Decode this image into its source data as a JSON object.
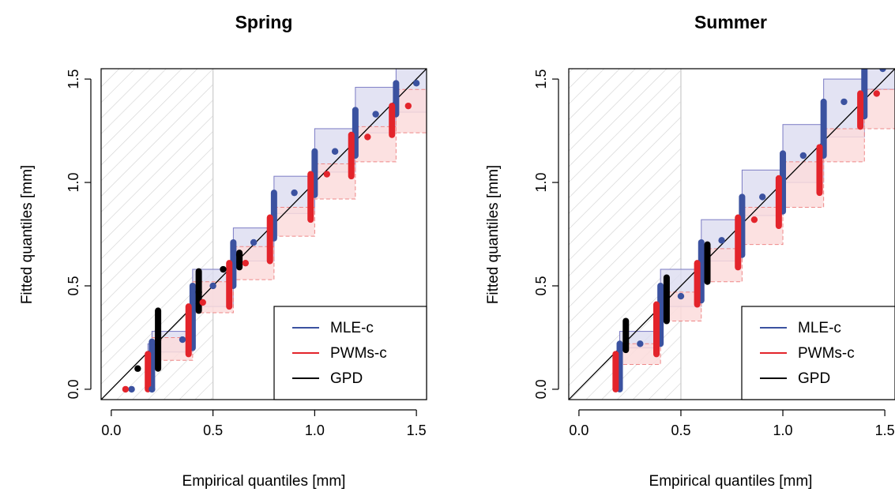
{
  "colors": {
    "mle": "#3b52a0",
    "mle_band_fill": "#dcdcf0",
    "mle_band_edge": "#7b7bc4",
    "pwm": "#e3242b",
    "pwm_band_fill": "#fcdcdc",
    "pwm_band_edge": "#ee8888",
    "gpd": "#000000",
    "hatch": "#d0d0d0",
    "threshold_line": "#d3d3d3"
  },
  "chart_data": [
    {
      "type": "scatter",
      "title": "Spring",
      "xlabel": "Empirical quantiles [mm]",
      "ylabel": "Fitted quantiles [mm]",
      "xlim": [
        -0.05,
        1.55
      ],
      "ylim": [
        -0.05,
        1.55
      ],
      "xticks": [
        0.0,
        0.5,
        1.0,
        1.5
      ],
      "yticks": [
        0.0,
        0.5,
        1.0,
        1.5
      ],
      "xtick_labels": [
        "0.0",
        "0.5",
        "1.0",
        "1.5"
      ],
      "ytick_labels": [
        "0.0",
        "0.5",
        "1.0",
        "1.5"
      ],
      "hatched_region_x": [
        -0.05,
        0.5
      ],
      "threshold": 0.5,
      "identity_line": true,
      "legend": {
        "placement": "bottom-right",
        "entries": [
          "MLE-c",
          "PWMs-c",
          "GPD"
        ]
      },
      "series": [
        {
          "name": "MLE-c",
          "points": [
            {
              "x": 0.1,
              "y": 0.0,
              "lo": 0.0,
              "hi": 0.0
            },
            {
              "x": 0.2,
              "y": 0.0,
              "lo": 0.0,
              "hi": 0.2
            },
            {
              "x": 0.35,
              "y": 0.24,
              "lo": 0.2,
              "hi": 0.35
            },
            {
              "x": 0.5,
              "y": 0.5,
              "lo": 0.38,
              "hi": 0.52
            },
            {
              "x": 0.7,
              "y": 0.71,
              "lo": 0.6,
              "hi": 0.72
            },
            {
              "x": 0.9,
              "y": 0.95,
              "lo": 0.8,
              "hi": 0.95
            },
            {
              "x": 1.1,
              "y": 1.15,
              "lo": 1.0,
              "hi": 1.15
            },
            {
              "x": 1.3,
              "y": 1.33,
              "lo": 1.2,
              "hi": 1.34
            },
            {
              "x": 1.5,
              "y": 1.48,
              "lo": 1.4,
              "hi": 1.5
            }
          ],
          "band": [
            {
              "x0": 0.18,
              "x1": 0.2,
              "lo": 0.0,
              "hi": 0.22
            },
            {
              "x0": 0.2,
              "x1": 0.4,
              "lo": 0.18,
              "hi": 0.28
            },
            {
              "x0": 0.4,
              "x1": 0.6,
              "lo": 0.4,
              "hi": 0.58
            },
            {
              "x0": 0.6,
              "x1": 0.8,
              "lo": 0.62,
              "hi": 0.78
            },
            {
              "x0": 0.8,
              "x1": 1.0,
              "lo": 0.85,
              "hi": 1.03
            },
            {
              "x0": 1.0,
              "x1": 1.2,
              "lo": 1.05,
              "hi": 1.26
            },
            {
              "x0": 1.2,
              "x1": 1.4,
              "lo": 1.24,
              "hi": 1.46
            },
            {
              "x0": 1.4,
              "x1": 1.6,
              "lo": 1.34,
              "hi": 1.6
            }
          ]
        },
        {
          "name": "PWMs-c",
          "points": [
            {
              "x": 0.07,
              "y": 0.0
            },
            {
              "x": 0.45,
              "y": 0.42
            },
            {
              "x": 0.66,
              "y": 0.61
            },
            {
              "x": 1.06,
              "y": 1.04
            },
            {
              "x": 1.26,
              "y": 1.22
            },
            {
              "x": 1.46,
              "y": 1.37
            }
          ],
          "band": [
            {
              "x0": 0.18,
              "x1": 0.2,
              "lo": 0.0,
              "hi": 0.15
            },
            {
              "x0": 0.2,
              "x1": 0.4,
              "lo": 0.14,
              "hi": 0.25
            },
            {
              "x0": 0.4,
              "x1": 0.6,
              "lo": 0.37,
              "hi": 0.52
            },
            {
              "x0": 0.6,
              "x1": 0.8,
              "lo": 0.53,
              "hi": 0.69
            },
            {
              "x0": 0.8,
              "x1": 1.0,
              "lo": 0.74,
              "hi": 0.88
            },
            {
              "x0": 1.0,
              "x1": 1.2,
              "lo": 0.92,
              "hi": 1.09
            },
            {
              "x0": 1.2,
              "x1": 1.4,
              "lo": 1.1,
              "hi": 1.27
            },
            {
              "x0": 1.4,
              "x1": 1.6,
              "lo": 1.24,
              "hi": 1.45
            }
          ]
        },
        {
          "name": "GPD",
          "points": [
            {
              "x": 0.13,
              "y": 0.1
            },
            {
              "x": 0.23,
              "y": 0.24
            },
            {
              "x": 0.43,
              "y": 0.47
            },
            {
              "x": 0.55,
              "y": 0.58
            },
            {
              "x": 0.63,
              "y": 0.65
            }
          ]
        }
      ],
      "vertical_bars": [
        {
          "series": "MLE-c",
          "x": 0.2,
          "lo": 0.0,
          "hi": 0.23
        },
        {
          "series": "MLE-c",
          "x": 0.4,
          "lo": 0.2,
          "hi": 0.5
        },
        {
          "series": "MLE-c",
          "x": 0.6,
          "lo": 0.5,
          "hi": 0.71
        },
        {
          "series": "MLE-c",
          "x": 0.8,
          "lo": 0.73,
          "hi": 0.95
        },
        {
          "series": "MLE-c",
          "x": 1.0,
          "lo": 0.94,
          "hi": 1.15
        },
        {
          "series": "MLE-c",
          "x": 1.2,
          "lo": 1.13,
          "hi": 1.35
        },
        {
          "series": "MLE-c",
          "x": 1.4,
          "lo": 1.33,
          "hi": 1.48
        },
        {
          "series": "PWMs-c",
          "x": 0.18,
          "lo": 0.0,
          "hi": 0.17
        },
        {
          "series": "PWMs-c",
          "x": 0.38,
          "lo": 0.17,
          "hi": 0.4
        },
        {
          "series": "PWMs-c",
          "x": 0.58,
          "lo": 0.4,
          "hi": 0.61
        },
        {
          "series": "PWMs-c",
          "x": 0.78,
          "lo": 0.62,
          "hi": 0.83
        },
        {
          "series": "PWMs-c",
          "x": 0.98,
          "lo": 0.82,
          "hi": 1.04
        },
        {
          "series": "PWMs-c",
          "x": 1.18,
          "lo": 1.03,
          "hi": 1.23
        },
        {
          "series": "PWMs-c",
          "x": 1.38,
          "lo": 1.23,
          "hi": 1.37
        },
        {
          "series": "GPD",
          "x": 0.23,
          "lo": 0.1,
          "hi": 0.38
        },
        {
          "series": "GPD",
          "x": 0.43,
          "lo": 0.38,
          "hi": 0.57
        },
        {
          "series": "GPD",
          "x": 0.63,
          "lo": 0.59,
          "hi": 0.66
        }
      ]
    },
    {
      "type": "scatter",
      "title": "Summer",
      "xlabel": "Empirical quantiles [mm]",
      "ylabel": "Fitted quantiles [mm]",
      "xlim": [
        -0.05,
        1.55
      ],
      "ylim": [
        -0.05,
        1.55
      ],
      "xticks": [
        0.0,
        0.5,
        1.0,
        1.5
      ],
      "yticks": [
        0.0,
        0.5,
        1.0,
        1.5
      ],
      "xtick_labels": [
        "0.0",
        "0.5",
        "1.0",
        "1.5"
      ],
      "ytick_labels": [
        "0.0",
        "0.5",
        "1.0",
        "1.5"
      ],
      "hatched_region_x": [
        -0.05,
        0.5
      ],
      "threshold": 0.5,
      "identity_line": true,
      "legend": {
        "placement": "bottom-right",
        "entries": [
          "MLE-c",
          "PWMs-c",
          "GPD"
        ]
      },
      "series": [
        {
          "name": "MLE-c",
          "points": [
            {
              "x": 0.3,
              "y": 0.22,
              "lo": 0.2,
              "hi": 0.22
            },
            {
              "x": 0.5,
              "y": 0.45,
              "lo": 0.4,
              "hi": 0.5
            },
            {
              "x": 0.7,
              "y": 0.72,
              "lo": 0.6,
              "hi": 0.72
            },
            {
              "x": 0.9,
              "y": 0.93,
              "lo": 0.8,
              "hi": 0.93
            },
            {
              "x": 1.1,
              "y": 1.13,
              "lo": 1.0,
              "hi": 1.14
            },
            {
              "x": 1.3,
              "y": 1.39,
              "lo": 1.2,
              "hi": 1.39
            },
            {
              "x": 1.49,
              "y": 1.55,
              "lo": 1.4,
              "hi": 1.55
            }
          ],
          "band": [
            {
              "x0": 0.2,
              "x1": 0.4,
              "lo": 0.2,
              "hi": 0.28
            },
            {
              "x0": 0.4,
              "x1": 0.6,
              "lo": 0.4,
              "hi": 0.58
            },
            {
              "x0": 0.6,
              "x1": 0.8,
              "lo": 0.62,
              "hi": 0.82
            },
            {
              "x0": 0.8,
              "x1": 1.0,
              "lo": 0.84,
              "hi": 1.06
            },
            {
              "x0": 1.0,
              "x1": 1.2,
              "lo": 1.0,
              "hi": 1.28
            },
            {
              "x0": 1.2,
              "x1": 1.4,
              "lo": 1.22,
              "hi": 1.5
            },
            {
              "x0": 1.4,
              "x1": 1.6,
              "lo": 1.45,
              "hi": 1.6
            }
          ]
        },
        {
          "name": "PWMs-c",
          "points": [
            {
              "x": 0.86,
              "y": 0.82
            },
            {
              "x": 1.46,
              "y": 1.43
            }
          ],
          "band": [
            {
              "x0": 0.2,
              "x1": 0.4,
              "lo": 0.12,
              "hi": 0.22
            },
            {
              "x0": 0.4,
              "x1": 0.6,
              "lo": 0.33,
              "hi": 0.47
            },
            {
              "x0": 0.6,
              "x1": 0.8,
              "lo": 0.52,
              "hi": 0.68
            },
            {
              "x0": 0.8,
              "x1": 1.0,
              "lo": 0.7,
              "hi": 0.88
            },
            {
              "x0": 1.0,
              "x1": 1.2,
              "lo": 0.88,
              "hi": 1.1
            },
            {
              "x0": 1.2,
              "x1": 1.4,
              "lo": 1.1,
              "hi": 1.26
            },
            {
              "x0": 1.4,
              "x1": 1.6,
              "lo": 1.26,
              "hi": 1.45
            }
          ]
        },
        {
          "name": "GPD",
          "points": []
        }
      ],
      "vertical_bars": [
        {
          "series": "MLE-c",
          "x": 0.2,
          "lo": 0.0,
          "hi": 0.22
        },
        {
          "series": "MLE-c",
          "x": 0.4,
          "lo": 0.22,
          "hi": 0.5
        },
        {
          "series": "MLE-c",
          "x": 0.6,
          "lo": 0.43,
          "hi": 0.71
        },
        {
          "series": "MLE-c",
          "x": 0.8,
          "lo": 0.65,
          "hi": 0.93
        },
        {
          "series": "MLE-c",
          "x": 1.0,
          "lo": 0.86,
          "hi": 1.14
        },
        {
          "series": "MLE-c",
          "x": 1.2,
          "lo": 1.13,
          "hi": 1.39
        },
        {
          "series": "MLE-c",
          "x": 1.4,
          "lo": 1.32,
          "hi": 1.55
        },
        {
          "series": "PWMs-c",
          "x": 0.18,
          "lo": 0.0,
          "hi": 0.17
        },
        {
          "series": "PWMs-c",
          "x": 0.38,
          "lo": 0.17,
          "hi": 0.41
        },
        {
          "series": "PWMs-c",
          "x": 0.58,
          "lo": 0.41,
          "hi": 0.61
        },
        {
          "series": "PWMs-c",
          "x": 0.78,
          "lo": 0.59,
          "hi": 0.83
        },
        {
          "series": "PWMs-c",
          "x": 0.98,
          "lo": 0.79,
          "hi": 1.02
        },
        {
          "series": "PWMs-c",
          "x": 1.18,
          "lo": 0.95,
          "hi": 1.17
        },
        {
          "series": "PWMs-c",
          "x": 1.38,
          "lo": 1.27,
          "hi": 1.43
        },
        {
          "series": "GPD",
          "x": 0.23,
          "lo": 0.19,
          "hi": 0.33
        },
        {
          "series": "GPD",
          "x": 0.43,
          "lo": 0.33,
          "hi": 0.54
        },
        {
          "series": "GPD",
          "x": 0.63,
          "lo": 0.52,
          "hi": 0.7
        }
      ]
    }
  ]
}
